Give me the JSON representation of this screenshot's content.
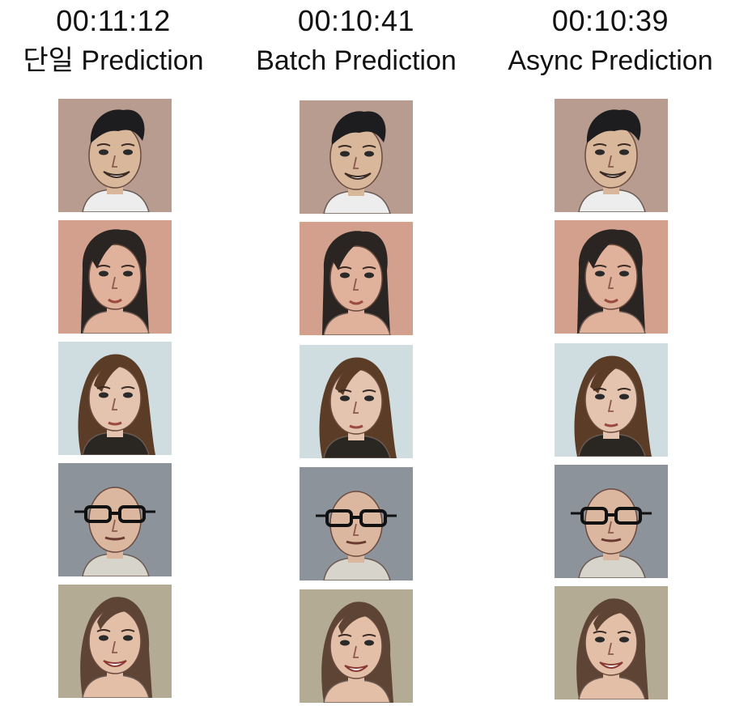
{
  "columns": [
    {
      "time": "00:11:12",
      "label": "단일 Prediction"
    },
    {
      "time": "00:10:41",
      "label": "Batch Prediction"
    },
    {
      "time": "00:10:39",
      "label": "Async Prediction"
    }
  ],
  "portraits": [
    {
      "name": "smiling-man",
      "bg": "#b79c8f",
      "skin": "#d8b79b",
      "hair": "#1d1c1f",
      "cloth": "#ededed"
    },
    {
      "name": "woman-long-dark-hair",
      "bg": "#d2a08c",
      "skin": "#e0b19b",
      "hair": "#2a2522",
      "cloth": "#e0b19b"
    },
    {
      "name": "woman-wavy-hair",
      "bg": "#cfdde0",
      "skin": "#e4c4ae",
      "hair": "#5b3c26",
      "cloth": "#2a2622"
    },
    {
      "name": "bald-man-glasses",
      "bg": "#8d939a",
      "skin": "#dcb7a0",
      "hair": "#dcb7a0",
      "cloth": "#d7d4cc"
    },
    {
      "name": "smiling-woman",
      "bg": "#b3ab93",
      "skin": "#e4bfa8",
      "hair": "#5d4434",
      "cloth": "#e4bfa8"
    }
  ]
}
